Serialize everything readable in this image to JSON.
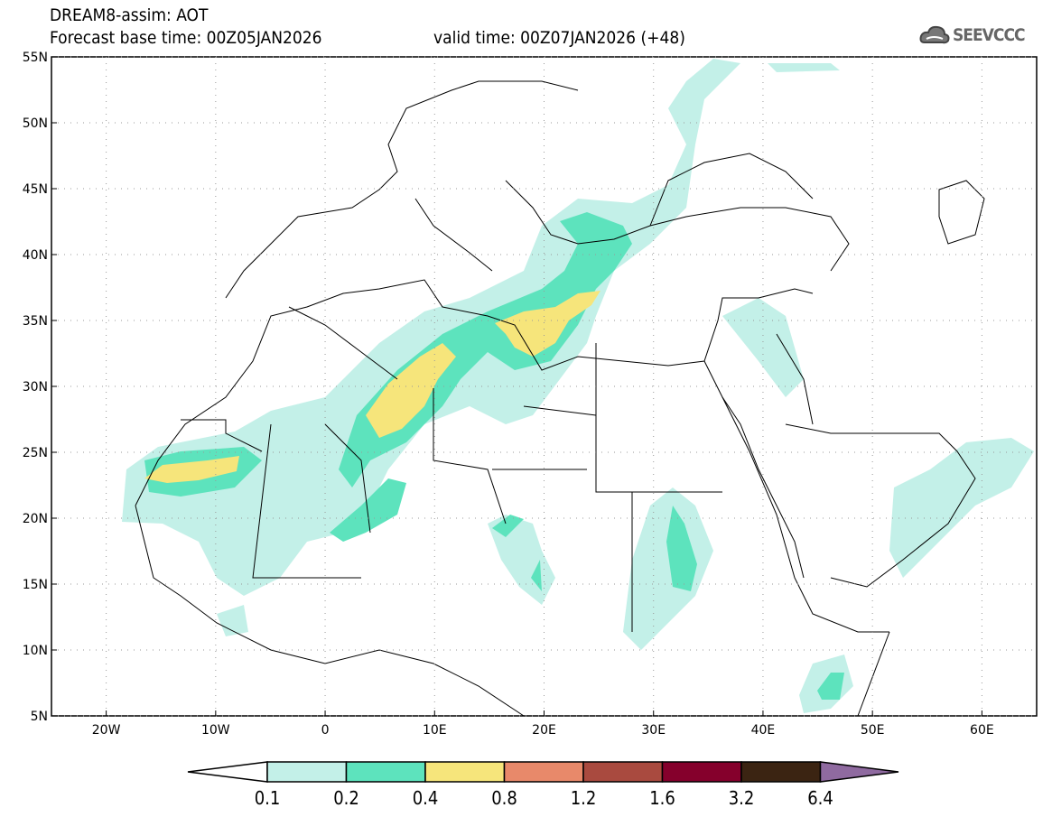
{
  "header": {
    "title": "DREAM8-assim: AOT",
    "base_time": "Forecast base time: 00Z05JAN2026",
    "valid_time": "valid time: 00Z07JAN2026 (+48)",
    "logo_text": "SEEVCCC"
  },
  "map": {
    "lon_range": [
      -25,
      65
    ],
    "lat_range": [
      5,
      55
    ],
    "lon_ticks": [
      {
        "v": -20,
        "label": "20W"
      },
      {
        "v": -10,
        "label": "10W"
      },
      {
        "v": 0,
        "label": "0"
      },
      {
        "v": 10,
        "label": "10E"
      },
      {
        "v": 20,
        "label": "20E"
      },
      {
        "v": 30,
        "label": "30E"
      },
      {
        "v": 40,
        "label": "40E"
      },
      {
        "v": 50,
        "label": "50E"
      },
      {
        "v": 60,
        "label": "60E"
      }
    ],
    "lat_ticks": [
      {
        "v": 55,
        "label": "55N"
      },
      {
        "v": 50,
        "label": "50N"
      },
      {
        "v": 45,
        "label": "45N"
      },
      {
        "v": 40,
        "label": "40N"
      },
      {
        "v": 35,
        "label": "35N"
      },
      {
        "v": 30,
        "label": "30N"
      },
      {
        "v": 25,
        "label": "25N"
      },
      {
        "v": 20,
        "label": "20N"
      },
      {
        "v": 15,
        "label": "15N"
      },
      {
        "v": 10,
        "label": "10N"
      },
      {
        "v": 5,
        "label": "5N"
      }
    ]
  },
  "colorbar": {
    "labels": [
      "0.1",
      "0.2",
      "0.4",
      "0.8",
      "1.2",
      "1.6",
      "3.2",
      "6.4"
    ],
    "colors": [
      "#c3f0e8",
      "#5de3bd",
      "#f6e57b",
      "#e8896a",
      "#a94a3f",
      "#85002c",
      "#3b2412"
    ],
    "over_color": "#8f6aa0",
    "under_color": "#ffffff"
  }
}
